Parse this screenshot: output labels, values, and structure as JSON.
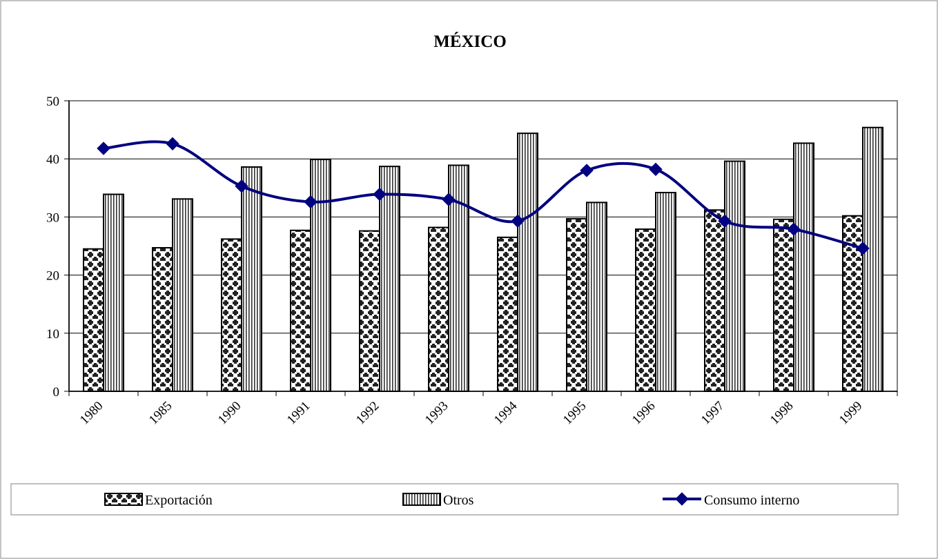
{
  "chart_data": {
    "type": "bar",
    "title": "MÉXICO",
    "xlabel": "",
    "ylabel": "",
    "categories": [
      "1980",
      "1985",
      "1990",
      "1991",
      "1992",
      "1993",
      "1994",
      "1995",
      "1996",
      "1997",
      "1998",
      "1999"
    ],
    "ylim": [
      0,
      50
    ],
    "yticks": [
      0,
      10,
      20,
      30,
      40,
      50
    ],
    "grid": true,
    "legend_position": "bottom",
    "series": [
      {
        "name": "Exportación",
        "type": "bar",
        "pattern": "dark-crosses",
        "values": [
          24.5,
          24.7,
          26.2,
          27.7,
          27.6,
          28.2,
          26.5,
          29.7,
          27.9,
          31.2,
          29.6,
          30.2
        ]
      },
      {
        "name": "Otros",
        "type": "bar",
        "pattern": "vertical-lines",
        "values": [
          33.9,
          33.1,
          38.6,
          39.9,
          38.7,
          38.9,
          44.4,
          32.5,
          34.2,
          39.6,
          42.7,
          45.4
        ]
      },
      {
        "name": "Consumo interno",
        "type": "line",
        "color": "#000080",
        "marker": "diamond",
        "smooth": true,
        "values": [
          41.8,
          42.6,
          35.3,
          32.6,
          33.9,
          33.0,
          29.3,
          38.0,
          38.2,
          29.3,
          27.9,
          24.6
        ]
      }
    ]
  }
}
